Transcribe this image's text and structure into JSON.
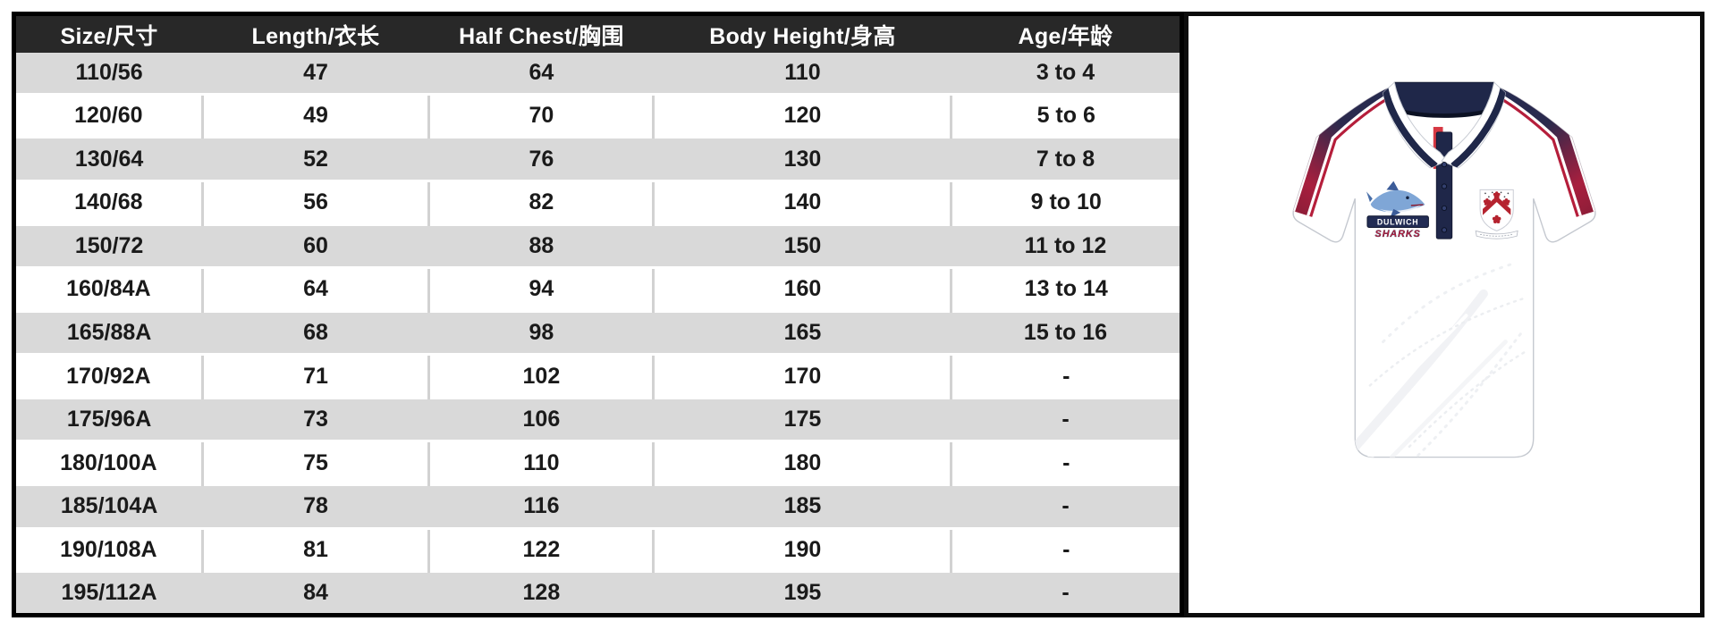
{
  "size_chart": {
    "columns": [
      "Size/尺寸",
      "Length/衣长",
      "Half Chest/胸围",
      "Body Height/身高",
      "Age/年龄"
    ],
    "rows": [
      [
        "110/56",
        "47",
        "64",
        "110",
        "3 to 4"
      ],
      [
        "120/60",
        "49",
        "70",
        "120",
        "5 to 6"
      ],
      [
        "130/64",
        "52",
        "76",
        "130",
        "7 to 8"
      ],
      [
        "140/68",
        "56",
        "82",
        "140",
        "9 to 10"
      ],
      [
        "150/72",
        "60",
        "88",
        "150",
        "11 to 12"
      ],
      [
        "160/84A",
        "64",
        "94",
        "160",
        "13 to 14"
      ],
      [
        "165/88A",
        "68",
        "98",
        "165",
        "15 to 16"
      ],
      [
        "170/92A",
        "71",
        "102",
        "170",
        "-"
      ],
      [
        "175/96A",
        "73",
        "106",
        "175",
        "-"
      ],
      [
        "180/100A",
        "75",
        "110",
        "180",
        "-"
      ],
      [
        "185/104A",
        "78",
        "116",
        "185",
        "-"
      ],
      [
        "190/108A",
        "81",
        "122",
        "190",
        "-"
      ],
      [
        "195/112A",
        "84",
        "128",
        "195",
        "-"
      ]
    ]
  },
  "product": {
    "type": "short-sleeve polo shirt, front view",
    "base_color": "#ffffff",
    "collar_color": "#1f2749",
    "stripe_navy": "#232b50",
    "stripe_red": "#b51e3b",
    "left_chest_logo": {
      "line1": "DULWICH",
      "line2": "SHARKS"
    },
    "right_chest_logo": "red-and-white school crest (chevron with cinquefoils)"
  },
  "colors": {
    "header_bg": "#282828",
    "header_text": "#ffffff",
    "row_alt_bg": "#d9d9d9",
    "row_bg": "#ffffff",
    "cell_text": "#1a1a1a",
    "table_border": "#000000",
    "panel_border": "#0c0c0c"
  }
}
